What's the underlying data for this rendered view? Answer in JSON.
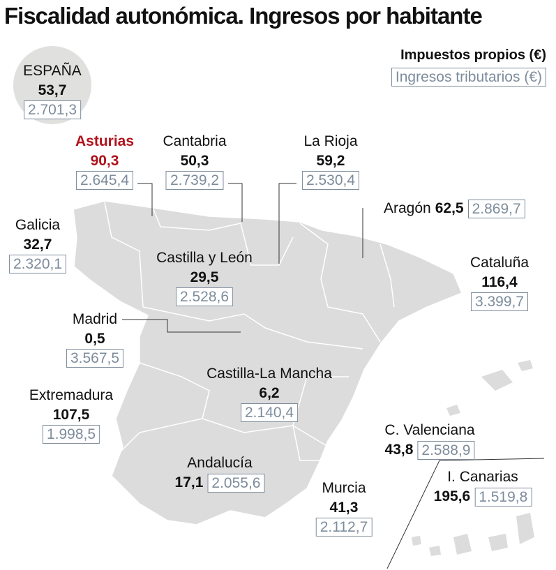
{
  "title": "Fiscalidad autonómica. Ingresos por habitante",
  "legend": {
    "own_taxes": "Impuestos propios (€)",
    "tax_revenue": "Ingresos tributarios (€)"
  },
  "spain": {
    "name": "ESPAÑA",
    "own_taxes": "53,7",
    "tax_revenue": "2.701,3"
  },
  "regions": [
    {
      "name": "Asturias",
      "own_taxes": "90,3",
      "tax_revenue": "2.645,4"
    },
    {
      "name": "Cantabria",
      "own_taxes": "50,3",
      "tax_revenue": "2.739,2"
    },
    {
      "name": "La Rioja",
      "own_taxes": "59,2",
      "tax_revenue": "2.530,4"
    },
    {
      "name": "Aragón",
      "own_taxes": "62,5",
      "tax_revenue": "2.869,7"
    },
    {
      "name": "Galicia",
      "own_taxes": "32,7",
      "tax_revenue": "2.320,1"
    },
    {
      "name": "Castilla y León",
      "own_taxes": "29,5",
      "tax_revenue": "2.528,6"
    },
    {
      "name": "Cataluña",
      "own_taxes": "116,4",
      "tax_revenue": "3.399,7"
    },
    {
      "name": "Madrid",
      "own_taxes": "0,5",
      "tax_revenue": "3.567,5"
    },
    {
      "name": "Castilla-La Mancha",
      "own_taxes": "6,2",
      "tax_revenue": "2.140,4"
    },
    {
      "name": "Extremadura",
      "own_taxes": "107,5",
      "tax_revenue": "1.998,5"
    },
    {
      "name": "C. Valenciana",
      "own_taxes": "43,8",
      "tax_revenue": "2.588,9"
    },
    {
      "name": "Andalucía",
      "own_taxes": "17,1",
      "tax_revenue": "2.055,6"
    },
    {
      "name": "Murcia",
      "own_taxes": "41,3",
      "tax_revenue": "2.112,7"
    },
    {
      "name": "I. Canarias",
      "own_taxes": "195,6",
      "tax_revenue": "1.519,8"
    }
  ]
}
